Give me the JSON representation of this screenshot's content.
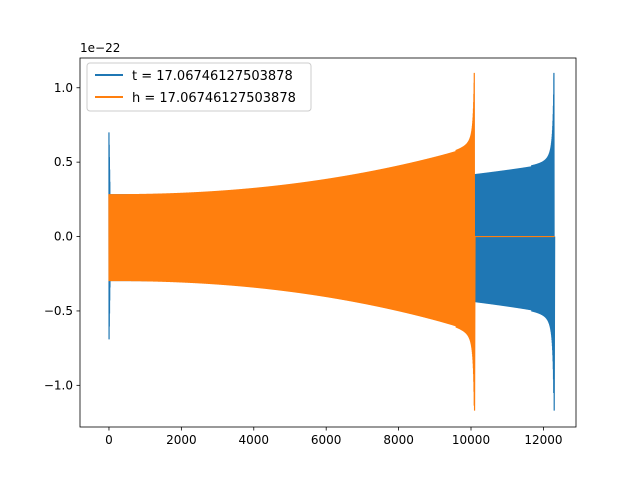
{
  "chart_data": {
    "type": "line",
    "title": "",
    "xlabel": "",
    "ylabel": "",
    "xlim": [
      -800,
      12900
    ],
    "ylim": [
      -1.28,
      1.2
    ],
    "y_offset_label": "1e−22",
    "x_ticks": [
      0,
      2000,
      4000,
      6000,
      8000,
      10000,
      12000
    ],
    "x_tick_labels": [
      "0",
      "2000",
      "4000",
      "6000",
      "8000",
      "10000",
      "12000"
    ],
    "y_ticks": [
      -1.0,
      -0.5,
      0.0,
      0.5,
      1.0
    ],
    "y_tick_labels": [
      "−1.0",
      "−0.5",
      "0.0",
      "0.5",
      "1.0"
    ],
    "grid": false,
    "legend_position": "top-left",
    "series": [
      {
        "name": "t = 17.06746127503878",
        "color": "#1f77b4",
        "kind": "chirp",
        "x_start": 0,
        "x_end": 12290,
        "initial_spike": 0.7,
        "amplitude_start": 0.285,
        "amplitude_at_10000": 0.4,
        "peak_max": 1.1,
        "peak_min": -1.17,
        "ringdown_end": 12310
      },
      {
        "name": "h = 17.06746127503878",
        "color": "#ff7f0e",
        "kind": "chirp",
        "x_start": 0,
        "x_end": 10090,
        "initial_spike": 0.0,
        "amplitude_start": 0.285,
        "amplitude_at_10000": 0.6,
        "peak_max": 1.1,
        "peak_min": -1.17,
        "ringdown_end": 10110,
        "tail_end": 12310
      }
    ]
  }
}
